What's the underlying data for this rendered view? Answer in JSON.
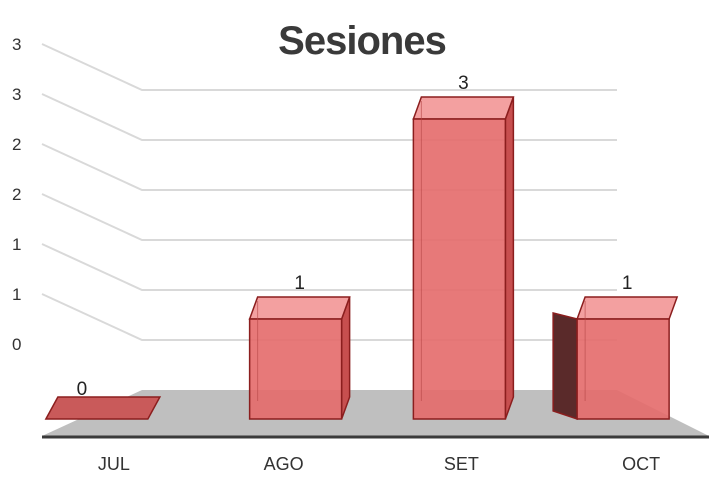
{
  "chart_data": {
    "type": "bar",
    "title": "Sesiones",
    "categories": [
      "JUL",
      "AGO",
      "SET",
      "OCT"
    ],
    "values": [
      0,
      1,
      3,
      1
    ],
    "data_labels": [
      "0",
      "1",
      "3",
      "1"
    ],
    "y_tick_labels": [
      "0",
      "1",
      "1",
      "2",
      "2",
      "3",
      "3"
    ],
    "ylim": [
      0,
      3
    ],
    "xlabel": "",
    "ylabel": "",
    "grid": true,
    "legend": "none",
    "style": "3d-column",
    "colors": {
      "bar_front": "#e46a6a",
      "bar_top": "#f3a0a0",
      "bar_side": "#c74f4f",
      "bar_edge": "#8b1e1e",
      "floor": "#bfbfbf",
      "gridline": "#d9d9d9"
    }
  }
}
